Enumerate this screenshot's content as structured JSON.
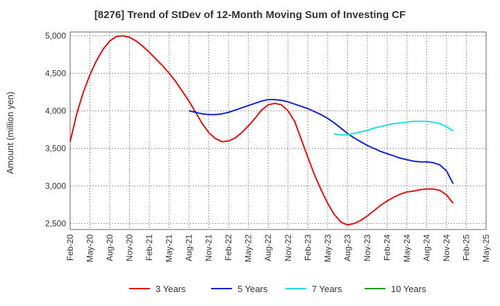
{
  "chart_data": {
    "type": "line",
    "title": "[8276]  Trend of StDev of 12-Month Moving Sum of Investing CF",
    "xlabel": "",
    "ylabel": "Amount (million yen)",
    "x_tick_labels": [
      "Feb-20",
      "May-20",
      "Aug-20",
      "Nov-20",
      "Feb-21",
      "May-21",
      "Aug-21",
      "Nov-21",
      "Feb-22",
      "May-22",
      "Aug-22",
      "Nov-22",
      "Feb-23",
      "May-23",
      "Aug-23",
      "Nov-23",
      "Feb-24",
      "May-24",
      "Aug-24",
      "Nov-24",
      "Feb-25",
      "May-25"
    ],
    "y_ticks": [
      2500,
      3000,
      3500,
      4000,
      4500,
      5000
    ],
    "y_tick_labels": [
      "2,500",
      "3,000",
      "3,500",
      "4,000",
      "4,500",
      "5,000"
    ],
    "ylim": [
      2420,
      5050
    ],
    "grid": true,
    "legend_position": "bottom",
    "series": [
      {
        "name": "3 Years",
        "color": "#dd1111",
        "values": [
          3590,
          3960,
          4250,
          4480,
          4670,
          4820,
          4930,
          4990,
          5000,
          4980,
          4930,
          4860,
          4780,
          4690,
          4600,
          4500,
          4390,
          4260,
          4130,
          3980,
          3830,
          3710,
          3630,
          3590,
          3600,
          3640,
          3710,
          3800,
          3900,
          4010,
          4080,
          4100,
          4080,
          4000,
          3860,
          3620,
          3380,
          3150,
          2950,
          2770,
          2620,
          2520,
          2480,
          2500,
          2540,
          2600,
          2670,
          2740,
          2800,
          2850,
          2890,
          2920,
          2930,
          2950,
          2960,
          2960,
          2940,
          2880,
          2770
        ]
      },
      {
        "name": "5 Years",
        "color": "#1122cc",
        "values": [
          null,
          null,
          null,
          null,
          null,
          null,
          null,
          null,
          null,
          null,
          null,
          null,
          null,
          null,
          null,
          null,
          null,
          null,
          4000,
          3980,
          3960,
          3950,
          3950,
          3960,
          3980,
          4010,
          4040,
          4070,
          4100,
          4130,
          4150,
          4150,
          4140,
          4120,
          4090,
          4060,
          4030,
          3990,
          3950,
          3900,
          3840,
          3770,
          3700,
          3640,
          3590,
          3540,
          3500,
          3460,
          3430,
          3400,
          3370,
          3350,
          3330,
          3320,
          3320,
          3310,
          3280,
          3200,
          3030
        ]
      },
      {
        "name": "7 Years",
        "color": "#22dddd",
        "values": [
          null,
          null,
          null,
          null,
          null,
          null,
          null,
          null,
          null,
          null,
          null,
          null,
          null,
          null,
          null,
          null,
          null,
          null,
          null,
          null,
          null,
          null,
          null,
          null,
          null,
          null,
          null,
          null,
          null,
          null,
          null,
          null,
          null,
          null,
          null,
          null,
          null,
          null,
          null,
          null,
          3690,
          3680,
          3680,
          3700,
          3720,
          3740,
          3770,
          3790,
          3810,
          3830,
          3840,
          3850,
          3860,
          3860,
          3860,
          3850,
          3830,
          3790,
          3730
        ]
      },
      {
        "name": "10 Years",
        "color": "#229922",
        "values": []
      }
    ]
  }
}
